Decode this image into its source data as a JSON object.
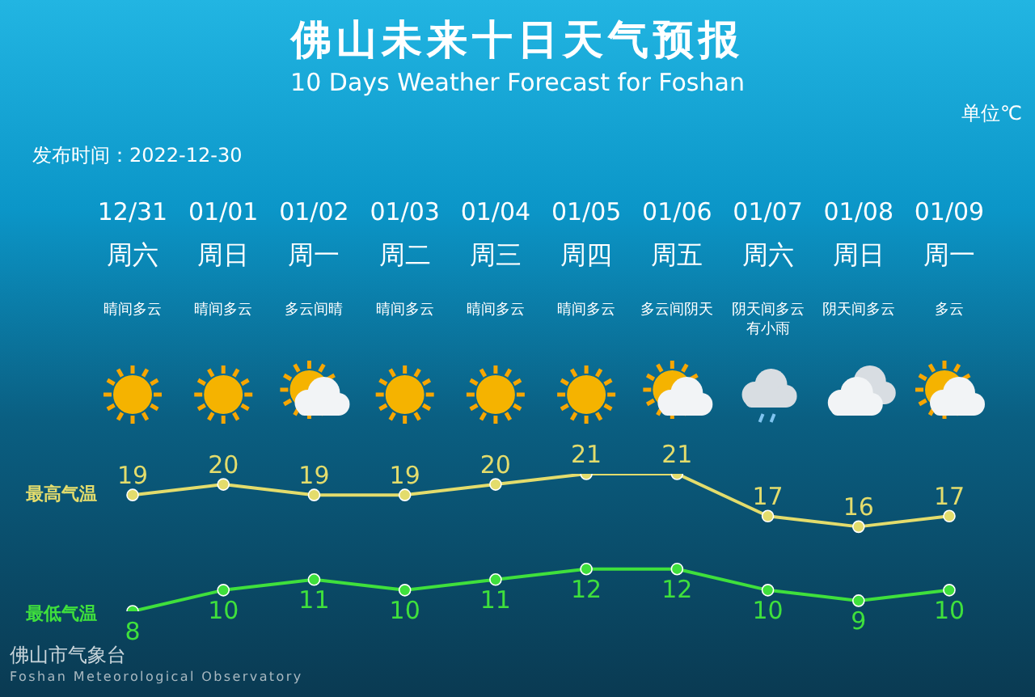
{
  "chart_data": {
    "type": "line",
    "title": "佛山未来十日天气预报",
    "subtitle": "10 Days Weather Forecast for Foshan",
    "annotations": [
      "单位℃",
      "发布时间：2022-12-30",
      "佛山市气象台",
      "Foshan Meteorological Observatory",
      "周六",
      "晴间多云",
      "周日",
      "晴间多云",
      "周一",
      "多云间晴",
      "周二",
      "晴间多云",
      "周三",
      "晴间多云",
      "周四",
      "晴间多云",
      "周五",
      "多云间阴天",
      "周六",
      "阴天间多云有小雨",
      "周日",
      "阴天间多云",
      "周一",
      "多云"
    ],
    "categories": [
      "12/31",
      "01/01",
      "01/02",
      "01/03",
      "01/04",
      "01/05",
      "01/06",
      "01/07",
      "01/08",
      "01/09"
    ],
    "series": [
      {
        "name": "最高气温",
        "color": "#e3dc6c",
        "values": [
          19,
          20,
          19,
          19,
          20,
          21,
          21,
          17,
          16,
          17
        ]
      },
      {
        "name": "最低气温",
        "color": "#3fe03c",
        "values": [
          8,
          10,
          11,
          10,
          11,
          12,
          12,
          10,
          9,
          10
        ]
      }
    ],
    "data_labels": true,
    "marker": "circle",
    "tick_labels": "x"
  }
}
